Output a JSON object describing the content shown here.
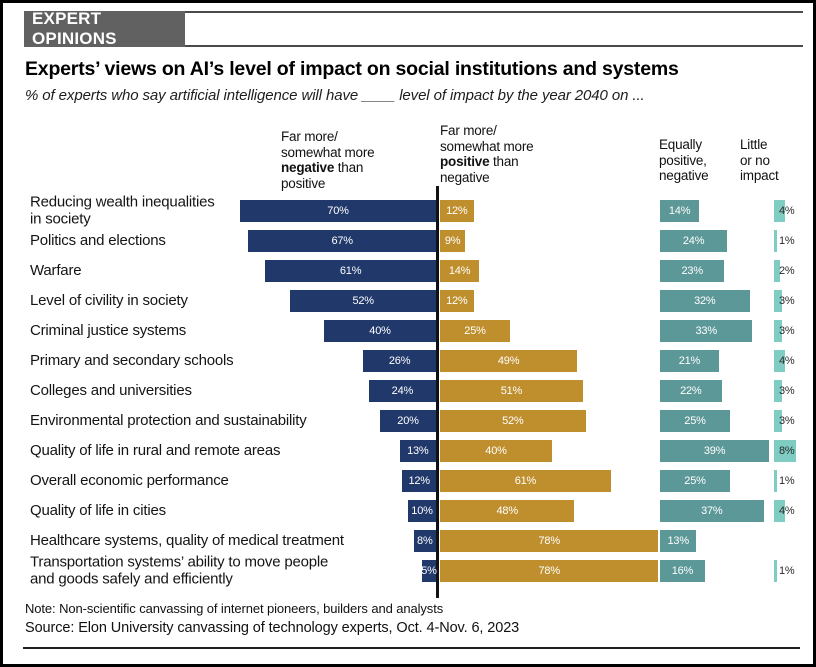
{
  "tag": "EXPERT OPINIONS",
  "title": "Experts’ views on AI’s level of impact on social institutions and systems",
  "subtitle": "% of experts who say artificial intelligence will have ____ level of impact by the year 2040 on ...",
  "headers": {
    "negative": {
      "prefix": "Far more/\nsomewhat more\n",
      "bold": "negative",
      "suffix": " than\npositive"
    },
    "positive": {
      "prefix": "Far more/\nsomewhat more\n",
      "bold": "positive",
      "suffix": " than\nnegative"
    },
    "equally": "Equally\npositive,\nnegative",
    "little": "Little\nor no\nimpact"
  },
  "note": "Note: Non-scientific canvassing of internet pioneers, builders and analysts",
  "source": "Source: Elon University canvassing of technology experts, Oct. 4-Nov. 6, 2023",
  "colors": {
    "negative": "#21386b",
    "positive": "#bf8f2e",
    "equally": "#5d9898",
    "little": "#7fcdc2"
  },
  "chart_data": {
    "type": "bar",
    "orientation": "horizontal-diverging",
    "unit": "%",
    "xlim": [
      0,
      100
    ],
    "legend_position": "column-headers-top",
    "series_labels": [
      "Far more/somewhat more negative than positive",
      "Far more/somewhat more positive than negative",
      "Equally positive, negative",
      "Little or no impact"
    ],
    "rows": [
      {
        "label": "Reducing wealth inequalities\nin society",
        "negative": 70,
        "positive": 12,
        "equally": 14,
        "little": 4
      },
      {
        "label": "Politics and elections",
        "negative": 67,
        "positive": 9,
        "equally": 24,
        "little": 1
      },
      {
        "label": "Warfare",
        "negative": 61,
        "positive": 14,
        "equally": 23,
        "little": 2
      },
      {
        "label": "Level of civility in society",
        "negative": 52,
        "positive": 12,
        "equally": 32,
        "little": 3
      },
      {
        "label": "Criminal justice systems",
        "negative": 40,
        "positive": 25,
        "equally": 33,
        "little": 3
      },
      {
        "label": "Primary and secondary schools",
        "negative": 26,
        "positive": 49,
        "equally": 21,
        "little": 4
      },
      {
        "label": "Colleges and universities",
        "negative": 24,
        "positive": 51,
        "equally": 22,
        "little": 3
      },
      {
        "label": "Environmental protection and sustainability",
        "negative": 20,
        "positive": 52,
        "equally": 25,
        "little": 3
      },
      {
        "label": "Quality of life in rural and remote areas",
        "negative": 13,
        "positive": 40,
        "equally": 39,
        "little": 8
      },
      {
        "label": "Overall economic performance",
        "negative": 12,
        "positive": 61,
        "equally": 25,
        "little": 1
      },
      {
        "label": "Quality of life in cities",
        "negative": 10,
        "positive": 48,
        "equally": 37,
        "little": 4
      },
      {
        "label": "Healthcare systems, quality of medical treatment",
        "negative": 8,
        "positive": 78,
        "equally": 13,
        "little": null
      },
      {
        "label": "Transportation systems’ ability to move people\nand goods safely and efficiently",
        "negative": 5,
        "positive": 78,
        "equally": 16,
        "little": 1
      }
    ]
  }
}
